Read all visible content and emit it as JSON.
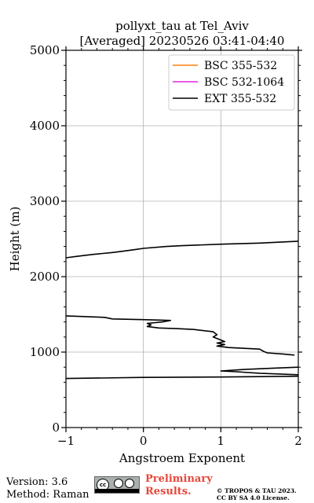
{
  "chart_data": {
    "type": "line",
    "title_line1": "pollyxt_tau at Tel_Aviv",
    "title_line2": "[Averaged] 20230526 03:41-04:40",
    "xlabel": "Angstroem Exponent",
    "ylabel": "Height (m)",
    "xlim": [
      -1,
      2
    ],
    "ylim": [
      0,
      5000
    ],
    "xticks": [
      "−1",
      "0",
      "1",
      "2"
    ],
    "xtick_values": [
      -1,
      0,
      1,
      2
    ],
    "yticks": [
      "0",
      "1000",
      "2000",
      "3000",
      "4000",
      "5000"
    ],
    "ytick_values": [
      0,
      1000,
      2000,
      3000,
      4000,
      5000
    ],
    "grid": true,
    "legend_position": "top-right",
    "series": [
      {
        "name": "BSC 355-532",
        "color": "#ff7f0e",
        "points": []
      },
      {
        "name": "BSC 532-1064",
        "color": "#e224e2",
        "points": []
      },
      {
        "name": "EXT 355-532",
        "color": "#000000",
        "points": [
          [
            -1.0,
            2250
          ],
          [
            -0.85,
            2270
          ],
          [
            -0.65,
            2295
          ],
          [
            -0.4,
            2320
          ],
          [
            -0.25,
            2340
          ],
          [
            -0.1,
            2360
          ],
          [
            0.0,
            2375
          ],
          [
            0.3,
            2400
          ],
          [
            0.5,
            2410
          ],
          [
            1.0,
            2430
          ],
          [
            1.5,
            2445
          ],
          [
            2.0,
            2470
          ],
          [
            null,
            null
          ],
          [
            -1.0,
            1480
          ],
          [
            -0.5,
            1460
          ],
          [
            -0.4,
            1440
          ],
          [
            0.0,
            1430
          ],
          [
            0.35,
            1420
          ],
          [
            0.25,
            1400
          ],
          [
            0.05,
            1380
          ],
          [
            0.1,
            1360
          ],
          [
            0.05,
            1340
          ],
          [
            0.2,
            1320
          ],
          [
            0.45,
            1310
          ],
          [
            0.65,
            1300
          ],
          [
            0.9,
            1270
          ],
          [
            0.95,
            1230
          ],
          [
            0.9,
            1200
          ],
          [
            1.0,
            1160
          ],
          [
            1.05,
            1140
          ],
          [
            0.95,
            1120
          ],
          [
            1.05,
            1100
          ],
          [
            0.95,
            1080
          ],
          [
            1.1,
            1060
          ],
          [
            1.5,
            1040
          ],
          [
            1.55,
            1010
          ],
          [
            1.6,
            990
          ],
          [
            1.8,
            975
          ],
          [
            1.95,
            960
          ],
          [
            null,
            null
          ],
          [
            2.0,
            800
          ],
          [
            1.65,
            785
          ],
          [
            1.3,
            770
          ],
          [
            1.0,
            750
          ],
          [
            1.2,
            740
          ],
          [
            1.5,
            720
          ],
          [
            2.0,
            700
          ],
          [
            null,
            null
          ],
          [
            2.0,
            680
          ],
          [
            1.0,
            670
          ],
          [
            0.0,
            665
          ],
          [
            -1.0,
            650
          ]
        ]
      }
    ]
  },
  "footer": {
    "version": "Version: 3.6",
    "method": "Method: Raman",
    "cc_label": "cc",
    "preliminary_line1": "Preliminary",
    "preliminary_line2": "Results.",
    "copyright_line1": "© TROPOS & TAU 2023.",
    "copyright_line2": "CC BY SA 4.0 License."
  }
}
